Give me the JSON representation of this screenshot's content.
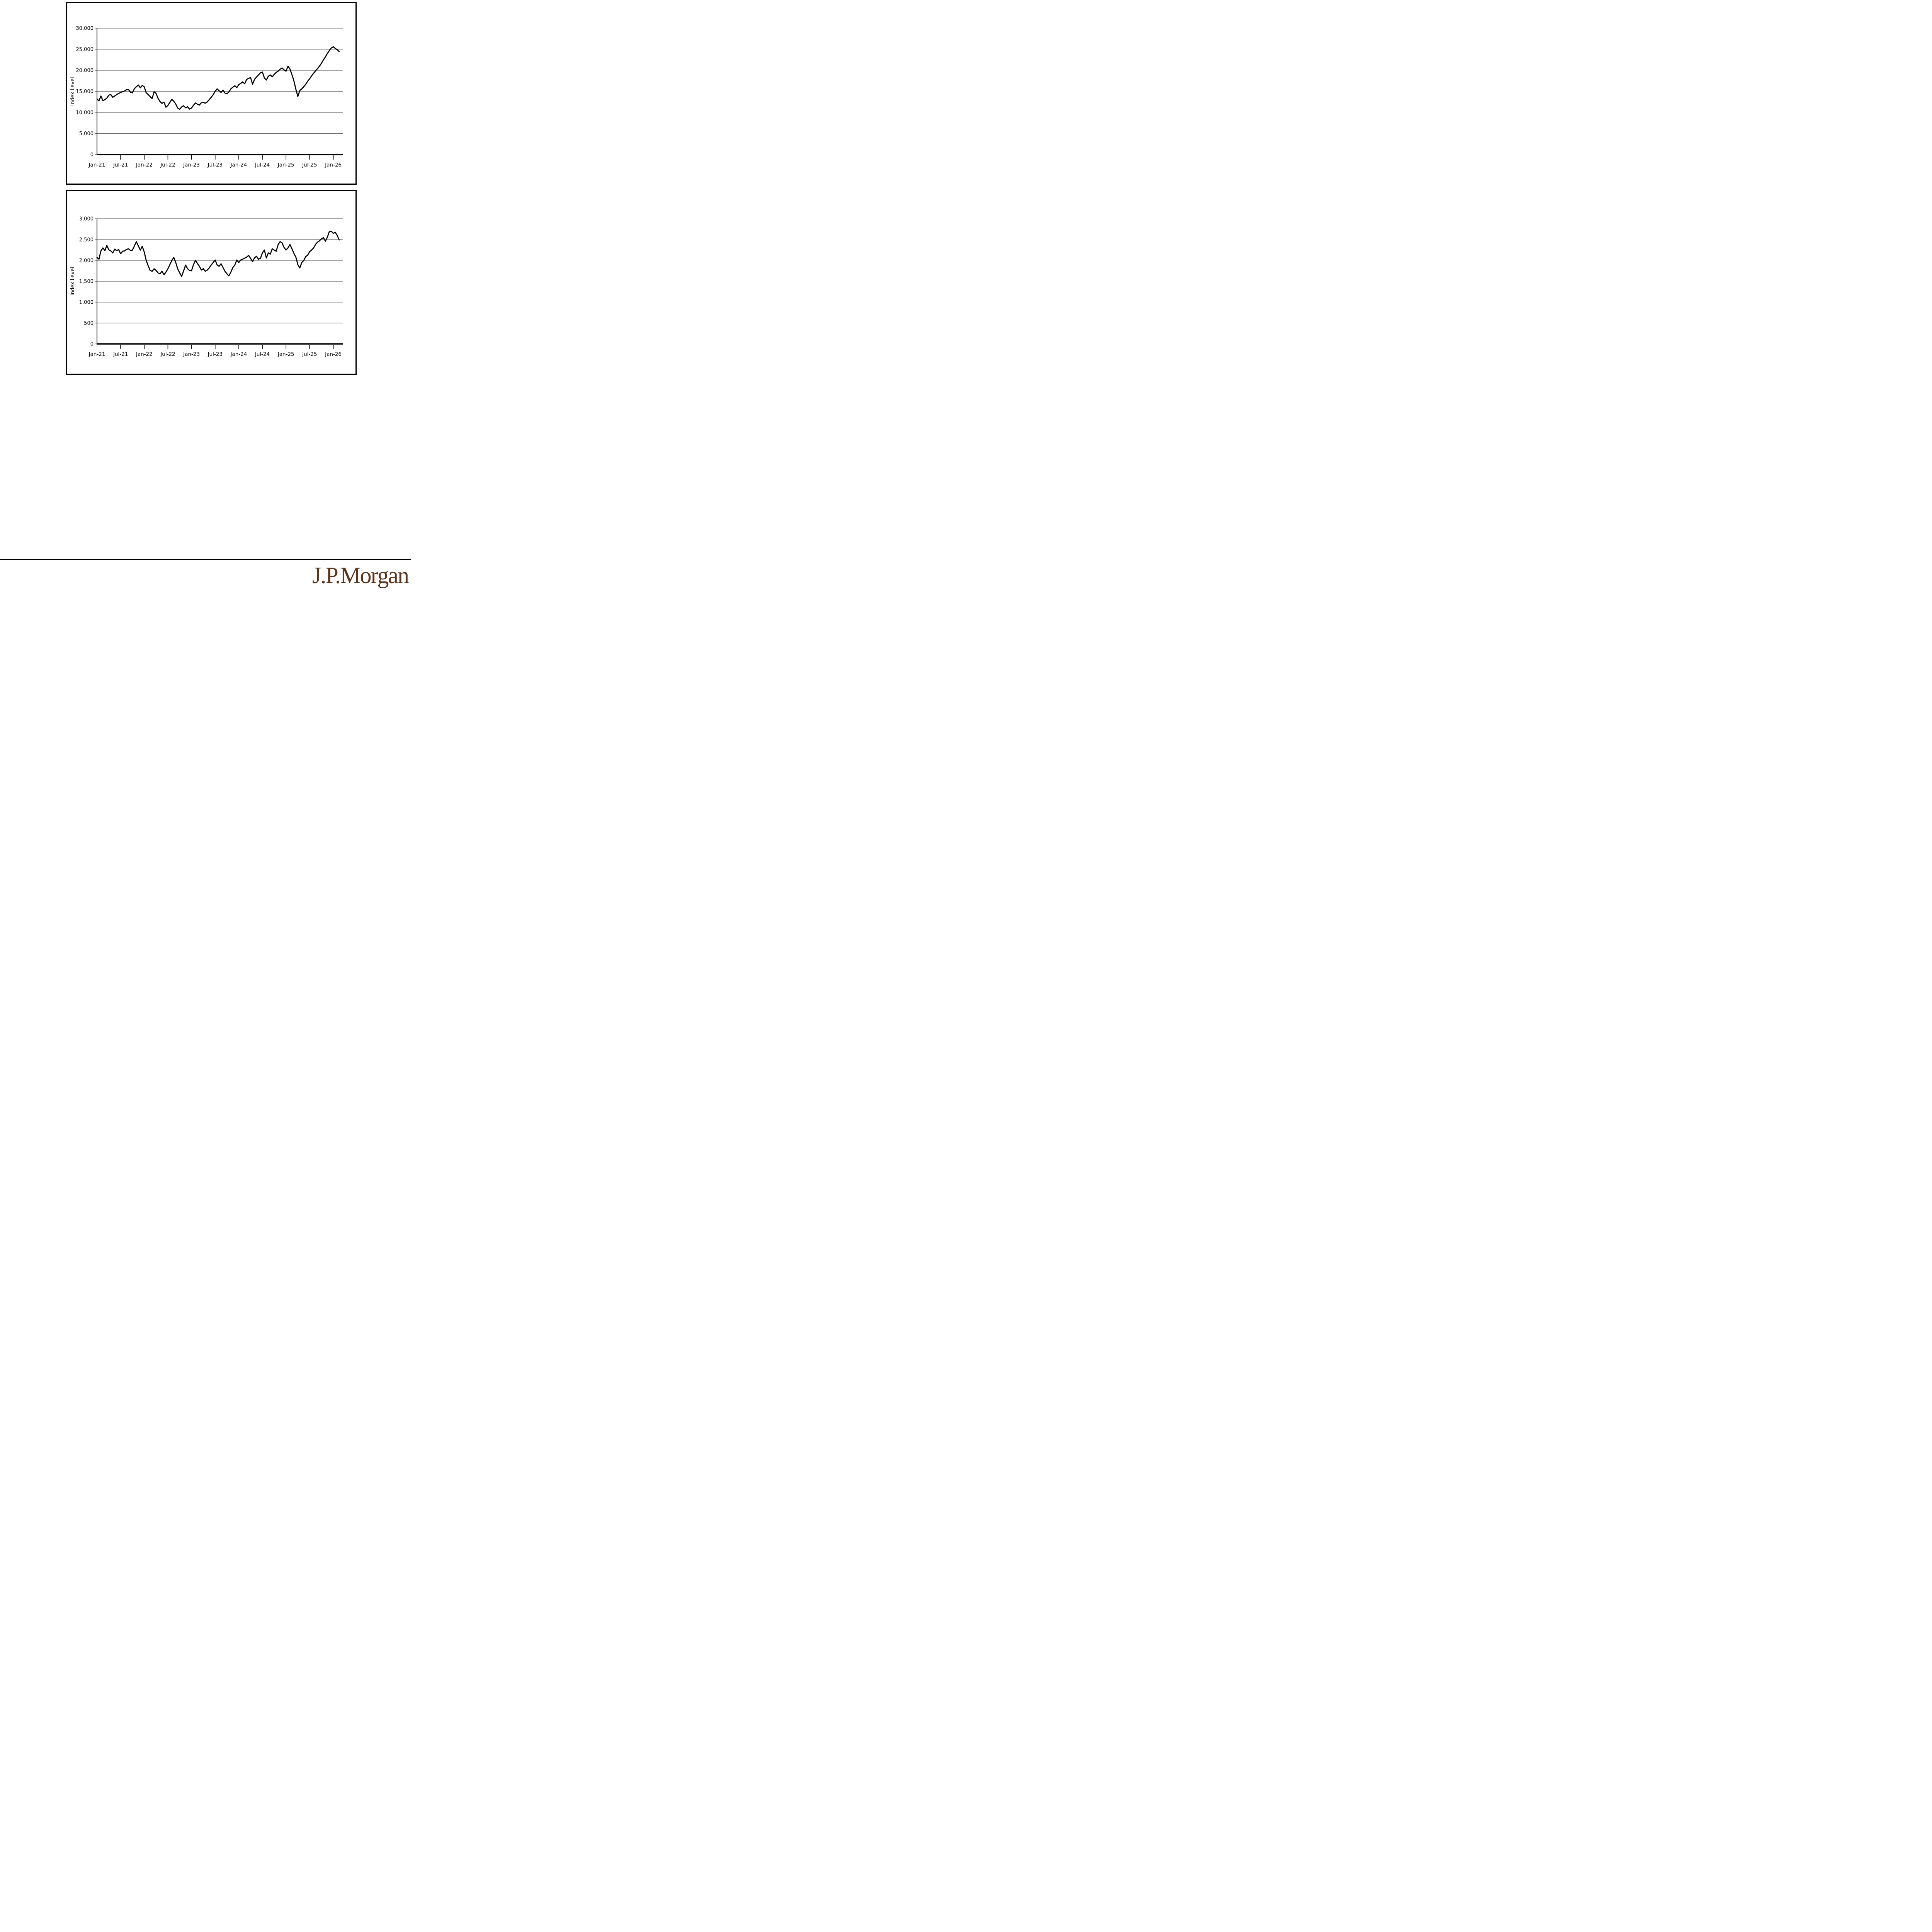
{
  "page": {
    "background": "#ffffff"
  },
  "footer": {
    "logo_text": "J.P.Morgan",
    "logo_color": "#5a351d",
    "rule_color": "#000000"
  },
  "chart_data": [
    {
      "type": "line",
      "title": "",
      "ylabel": "Index Level",
      "ylim": [
        0,
        30000
      ],
      "ytick_interval": 5000,
      "grid": true,
      "legend": "none",
      "colors": {
        "line": "#000000",
        "grid": "#6e6e6e",
        "axis": "#000000"
      },
      "yticks": [
        {
          "v": 0,
          "label": "0"
        },
        {
          "v": 5000,
          "label": "5,000"
        },
        {
          "v": 10000,
          "label": "10,000"
        },
        {
          "v": 15000,
          "label": "15,000"
        },
        {
          "v": 20000,
          "label": "20,000"
        },
        {
          "v": 25000,
          "label": "25,000"
        },
        {
          "v": 30000,
          "label": "30,000"
        }
      ],
      "xticks": [
        {
          "m": 0,
          "label": "Jan-21"
        },
        {
          "m": 6,
          "label": "Jul-21"
        },
        {
          "m": 12,
          "label": "Jan-22"
        },
        {
          "m": 18,
          "label": "Jul-22"
        },
        {
          "m": 24,
          "label": "Jan-23"
        },
        {
          "m": 30,
          "label": "Jul-23"
        },
        {
          "m": 36,
          "label": "Jan-24"
        },
        {
          "m": 42,
          "label": "Jul-24"
        },
        {
          "m": 48,
          "label": "Jan-25"
        },
        {
          "m": 54,
          "label": "Jul-25"
        },
        {
          "m": 60,
          "label": "Jan-26"
        }
      ],
      "x_unit": "months since Jan-2021, semi-monthly samples",
      "xlim_months": [
        0,
        62.4
      ],
      "points_per_month": 2,
      "values": [
        13200,
        12750,
        13900,
        12800,
        13050,
        13400,
        14100,
        14250,
        13600,
        13900,
        14250,
        14500,
        14750,
        14900,
        15100,
        15400,
        15450,
        14800,
        14650,
        15650,
        16100,
        16500,
        15850,
        16400,
        16100,
        14650,
        14250,
        13750,
        13300,
        14900,
        14500,
        13350,
        12600,
        12150,
        12450,
        11250,
        11650,
        12400,
        13100,
        12650,
        12000,
        11050,
        10750,
        11300,
        11600,
        11100,
        11350,
        10800,
        11050,
        11700,
        12250,
        11950,
        11750,
        12300,
        12350,
        12200,
        12500,
        13050,
        13600,
        14200,
        15000,
        15600,
        15150,
        14750,
        15300,
        14600,
        14450,
        14850,
        15600,
        16000,
        16340,
        15900,
        16600,
        16900,
        17250,
        16800,
        17850,
        18080,
        18300,
        16700,
        17850,
        18400,
        18900,
        19400,
        19600,
        18200,
        17700,
        18600,
        18900,
        18450,
        19050,
        19500,
        19800,
        20260,
        20550,
        20100,
        19800,
        21000,
        20300,
        19000,
        17500,
        15500,
        13800,
        15200,
        15600,
        16100,
        16700,
        17400,
        18000,
        18700,
        19300,
        19900,
        20400,
        21000,
        21700,
        22500,
        23200,
        24000,
        24700,
        25300,
        25600,
        25200,
        24900,
        24450
      ]
    },
    {
      "type": "line",
      "title": "",
      "ylabel": "Index Level",
      "ylim": [
        0,
        3000
      ],
      "ytick_interval": 500,
      "grid": true,
      "legend": "none",
      "colors": {
        "line": "#000000",
        "grid": "#6e6e6e",
        "axis": "#000000"
      },
      "yticks": [
        {
          "v": 0,
          "label": "0"
        },
        {
          "v": 500,
          "label": "500"
        },
        {
          "v": 1000,
          "label": "1,000"
        },
        {
          "v": 1500,
          "label": "1,500"
        },
        {
          "v": 2000,
          "label": "2,000"
        },
        {
          "v": 2500,
          "label": "2,500"
        },
        {
          "v": 3000,
          "label": "3,000"
        }
      ],
      "xticks": [
        {
          "m": 0,
          "label": "Jan-21"
        },
        {
          "m": 6,
          "label": "Jul-21"
        },
        {
          "m": 12,
          "label": "Jan-22"
        },
        {
          "m": 18,
          "label": "Jul-22"
        },
        {
          "m": 24,
          "label": "Jan-23"
        },
        {
          "m": 30,
          "label": "Jul-23"
        },
        {
          "m": 36,
          "label": "Jan-24"
        },
        {
          "m": 42,
          "label": "Jul-24"
        },
        {
          "m": 48,
          "label": "Jan-25"
        },
        {
          "m": 54,
          "label": "Jul-25"
        },
        {
          "m": 60,
          "label": "Jan-26"
        }
      ],
      "x_unit": "months since Jan-2021, semi-monthly samples",
      "xlim_months": [
        0,
        62.4
      ],
      "points_per_month": 2,
      "values": [
        2070,
        2030,
        2230,
        2300,
        2235,
        2360,
        2255,
        2230,
        2180,
        2270,
        2235,
        2260,
        2160,
        2220,
        2230,
        2265,
        2280,
        2240,
        2245,
        2345,
        2450,
        2350,
        2245,
        2340,
        2200,
        2000,
        1870,
        1760,
        1740,
        1800,
        1760,
        1700,
        1680,
        1740,
        1660,
        1720,
        1800,
        1900,
        2000,
        2070,
        1950,
        1800,
        1700,
        1620,
        1750,
        1890,
        1800,
        1760,
        1750,
        1900,
        2000,
        1930,
        1860,
        1770,
        1800,
        1740,
        1770,
        1820,
        1890,
        1950,
        2010,
        1890,
        1860,
        1920,
        1830,
        1740,
        1680,
        1630,
        1720,
        1830,
        1890,
        2010,
        1950,
        2010,
        2030,
        2055,
        2080,
        2120,
        2050,
        1970,
        2060,
        2100,
        2030,
        2050,
        2180,
        2250,
        2060,
        2180,
        2150,
        2280,
        2250,
        2220,
        2380,
        2450,
        2420,
        2310,
        2250,
        2300,
        2380,
        2280,
        2170,
        2080,
        1900,
        1820,
        1950,
        2000,
        2090,
        2130,
        2210,
        2250,
        2300,
        2385,
        2440,
        2470,
        2520,
        2545,
        2460,
        2560,
        2690,
        2700,
        2650,
        2675,
        2600,
        2490
      ]
    }
  ]
}
